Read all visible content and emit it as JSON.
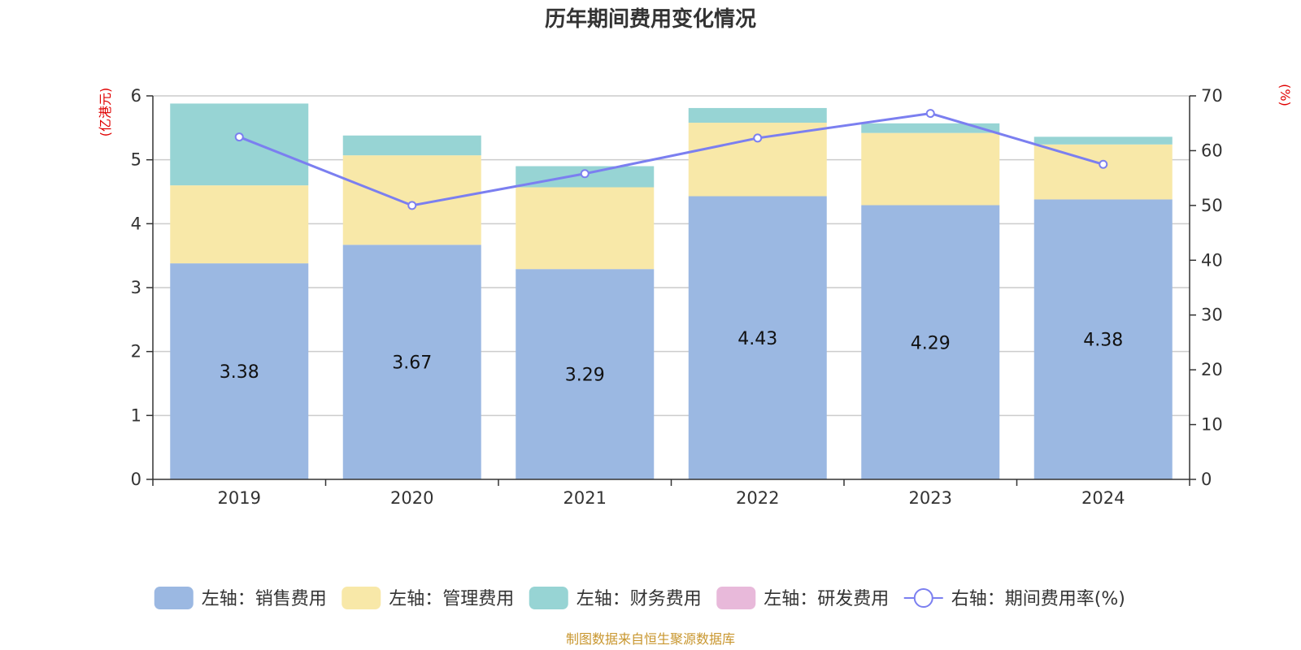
{
  "chart_data": {
    "type": "bar",
    "title": "历年期间费用变化情况",
    "categories": [
      "2019",
      "2020",
      "2021",
      "2022",
      "2023",
      "2024"
    ],
    "left_axis": {
      "unit": "(亿港元)",
      "ylim": [
        0,
        6
      ],
      "ticks": [
        0,
        1,
        2,
        3,
        4,
        5,
        6
      ]
    },
    "right_axis": {
      "unit": "(%)",
      "ylim": [
        0,
        70
      ],
      "ticks": [
        0,
        10,
        20,
        30,
        40,
        50,
        60,
        70
      ]
    },
    "stacked": true,
    "series": [
      {
        "name": "左轴：销售费用",
        "type": "bar",
        "axis": "left",
        "color": "#9bb8e2",
        "values": [
          3.38,
          3.67,
          3.29,
          4.43,
          4.29,
          4.38
        ],
        "show_labels": true
      },
      {
        "name": "左轴：管理费用",
        "type": "bar",
        "axis": "left",
        "color": "#f8e8a8",
        "values": [
          1.22,
          1.4,
          1.28,
          1.15,
          1.13,
          0.86
        ],
        "show_labels": false
      },
      {
        "name": "左轴：财务费用",
        "type": "bar",
        "axis": "left",
        "color": "#97d4d4",
        "values": [
          1.28,
          0.31,
          0.33,
          0.23,
          0.15,
          0.12
        ],
        "show_labels": false
      },
      {
        "name": "左轴：研发费用",
        "type": "bar",
        "axis": "left",
        "color": "#e8b9da",
        "values": [
          0,
          0,
          0,
          0,
          0,
          0
        ],
        "show_labels": false
      },
      {
        "name": "右轴：期间费用率(%)",
        "type": "line",
        "axis": "right",
        "color": "#7b7ff0",
        "values": [
          62.5,
          50.0,
          55.8,
          62.3,
          66.8,
          57.5
        ],
        "show_labels": false
      }
    ],
    "grid": true,
    "legend_position": "bottom",
    "source": "制图数据来自恒生聚源数据库"
  }
}
